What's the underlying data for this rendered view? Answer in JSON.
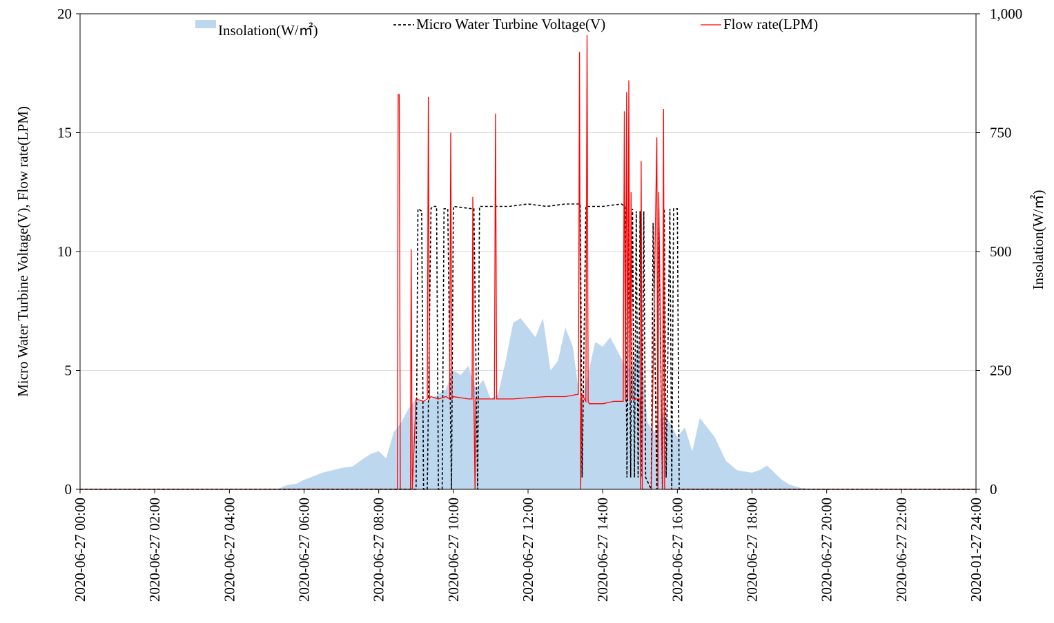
{
  "chart_data": {
    "type": "line",
    "title": "",
    "left_ylabel": "Micro Water Turbine Voltage(V), Flow rate(LPM)",
    "right_ylabel": "Insolation(W/㎡)",
    "left_ylim": [
      0,
      20
    ],
    "right_ylim": [
      0,
      1000
    ],
    "left_yticks": [
      "0",
      "5",
      "10",
      "15",
      "20"
    ],
    "right_yticks": [
      "0",
      "250",
      "500",
      "750",
      "1,000"
    ],
    "xlim_hours": [
      0,
      24
    ],
    "x_tick_labels": [
      "2020-06-27 00:00",
      "2020-06-27 02:00",
      "2020-06-27 04:00",
      "2020-06-27 06:00",
      "2020-06-27 08:00",
      "2020-06-27 10:00",
      "2020-06-27 12:00",
      "2020-06-27 14:00",
      "2020-06-27 16:00",
      "2020-06-27 18:00",
      "2020-06-27 20:00",
      "2020-06-27 22:00",
      "2020-01-27 24:00"
    ],
    "grid": "horizontal",
    "legend_position": "top",
    "legend": [
      {
        "label": "Insolation(W/㎡)",
        "style": "area",
        "color": "#BDD7EE"
      },
      {
        "label": "Micro Water Turbine Voltage(V)",
        "style": "dashed",
        "color": "#000000"
      },
      {
        "label": "Flow rate(LPM)",
        "style": "line",
        "color": "#FF0000"
      }
    ],
    "series": [
      {
        "name": "Insolation(W/㎡)",
        "axis": "right",
        "x": [
          0,
          5.3,
          5.5,
          5.8,
          6.0,
          6.5,
          7.0,
          7.3,
          7.6,
          7.8,
          8.0,
          8.2,
          8.4,
          8.6,
          8.8,
          9.0,
          9.3,
          9.6,
          9.8,
          10.0,
          10.2,
          10.4,
          10.6,
          10.8,
          11.0,
          11.2,
          11.4,
          11.6,
          11.8,
          12.0,
          12.2,
          12.4,
          12.6,
          12.8,
          13.0,
          13.2,
          13.4,
          13.6,
          13.8,
          14.0,
          14.2,
          14.4,
          14.6,
          14.8,
          15.0,
          15.2,
          15.4,
          15.6,
          15.8,
          16.0,
          16.2,
          16.4,
          16.6,
          16.8,
          17.0,
          17.3,
          17.6,
          18.0,
          18.2,
          18.4,
          18.6,
          18.8,
          19.0,
          19.3,
          19.6,
          24
        ],
        "values": [
          0,
          0,
          8,
          12,
          20,
          35,
          45,
          48,
          65,
          75,
          80,
          65,
          120,
          140,
          170,
          190,
          185,
          200,
          210,
          250,
          240,
          260,
          210,
          230,
          190,
          200,
          270,
          350,
          360,
          340,
          320,
          360,
          250,
          270,
          340,
          300,
          180,
          240,
          310,
          300,
          320,
          290,
          260,
          250,
          320,
          140,
          120,
          160,
          140,
          110,
          130,
          80,
          150,
          130,
          110,
          60,
          40,
          35,
          40,
          50,
          35,
          20,
          10,
          3,
          0,
          0
        ]
      },
      {
        "name": "Micro Water Turbine Voltage(V)",
        "axis": "left",
        "x": [
          0,
          9.0,
          9.05,
          9.15,
          9.2,
          9.3,
          9.4,
          9.45,
          9.55,
          9.6,
          9.7,
          9.75,
          9.85,
          9.95,
          10.0,
          10.5,
          10.55,
          10.65,
          10.7,
          11.2,
          11.5,
          12.0,
          12.5,
          13.0,
          13.4,
          13.45,
          13.55,
          13.65,
          13.7,
          14.0,
          14.5,
          14.6,
          14.65,
          14.7,
          14.75,
          14.8,
          14.85,
          14.9,
          14.95,
          15.0,
          15.05,
          15.1,
          15.15,
          15.3,
          15.35,
          15.45,
          15.5,
          15.6,
          15.65,
          15.7,
          15.8,
          15.85,
          15.9,
          16.0,
          16.05,
          24
        ],
        "values": [
          0,
          0,
          11.8,
          11.7,
          0,
          0,
          11.8,
          11.9,
          11.9,
          0,
          0,
          11.8,
          11.8,
          0,
          11.9,
          11.8,
          11.8,
          0,
          11.9,
          11.9,
          11.9,
          12.0,
          11.9,
          12.0,
          12.0,
          0.5,
          11.9,
          11.9,
          11.9,
          11.9,
          12.0,
          11.9,
          0.5,
          11.8,
          0.5,
          11.8,
          0.5,
          11.7,
          0.5,
          11.7,
          0.5,
          11.7,
          0.5,
          0,
          11.2,
          0,
          11.8,
          0,
          11.8,
          0.5,
          11.8,
          0,
          11.8,
          11.8,
          0,
          0
        ]
      },
      {
        "name": "Flow rate(LPM)",
        "axis": "left",
        "x": [
          0,
          8.5,
          8.52,
          8.55,
          8.58,
          8.6,
          8.85,
          8.87,
          8.9,
          9.0,
          9.2,
          9.3,
          9.33,
          9.36,
          9.4,
          9.6,
          9.8,
          9.9,
          9.93,
          9.96,
          10.0,
          10.4,
          10.5,
          10.52,
          10.55,
          10.58,
          10.6,
          11.0,
          11.1,
          11.13,
          11.16,
          11.2,
          11.6,
          12.0,
          12.5,
          13.0,
          13.35,
          13.38,
          13.41,
          13.44,
          13.55,
          13.58,
          13.61,
          13.64,
          13.7,
          14.0,
          14.3,
          14.55,
          14.58,
          14.61,
          14.64,
          14.67,
          14.7,
          14.73,
          14.76,
          14.79,
          15.0,
          15.01,
          15.03,
          15.06,
          15.3,
          15.45,
          15.48,
          15.5,
          15.6,
          15.63,
          15.66,
          15.8,
          15.83,
          15.86,
          15.9,
          24
        ],
        "values": [
          0,
          0,
          16.6,
          16.6,
          0,
          0,
          0,
          10.1,
          0,
          3.8,
          3.7,
          3.8,
          16.5,
          3.8,
          3.9,
          3.8,
          3.9,
          3.8,
          15.0,
          3.8,
          3.9,
          3.8,
          3.8,
          12.3,
          3.8,
          0,
          3.8,
          3.8,
          3.8,
          15.8,
          3.8,
          3.8,
          3.8,
          3.85,
          3.9,
          3.9,
          4.0,
          18.4,
          0,
          4.0,
          3.7,
          19.1,
          3.7,
          3.6,
          3.6,
          3.6,
          3.7,
          3.7,
          15.9,
          3.7,
          16.7,
          3.8,
          17.2,
          3.7,
          12.5,
          3.8,
          3.8,
          0,
          13.8,
          0,
          0,
          14.8,
          0,
          12.5,
          0,
          16.0,
          0,
          0,
          0,
          0,
          0,
          0
        ]
      }
    ]
  }
}
